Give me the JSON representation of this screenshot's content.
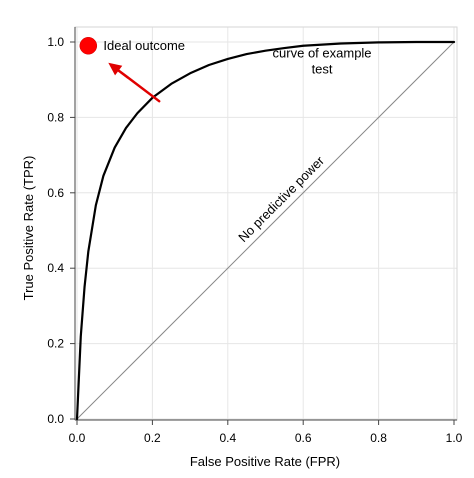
{
  "chart_data": {
    "type": "line",
    "title": "",
    "xlabel": "False Positive Rate (FPR)",
    "ylabel": "True Positive Rate (TPR)",
    "xlim": [
      0,
      1
    ],
    "ylim": [
      0,
      1
    ],
    "x_ticks": [
      0.0,
      0.2,
      0.4,
      0.6,
      0.8,
      1.0
    ],
    "y_ticks": [
      0.0,
      0.2,
      0.4,
      0.6,
      0.8,
      1.0
    ],
    "x_tick_labels": [
      "0.0",
      "0.2",
      "0.4",
      "0.6",
      "0.8",
      "1.0"
    ],
    "y_tick_labels": [
      "0.0",
      "0.2",
      "0.4",
      "0.6",
      "0.8",
      "1.0"
    ],
    "grid": true,
    "series": [
      {
        "style": "solid",
        "color": "#000000",
        "x": [
          0.0,
          0.01,
          0.02,
          0.03,
          0.05,
          0.07,
          0.1,
          0.13,
          0.16,
          0.2,
          0.25,
          0.3,
          0.35,
          0.4,
          0.45,
          0.5,
          0.55,
          0.6,
          0.7,
          0.8,
          0.9,
          1.0
        ],
        "y": [
          0.0,
          0.219,
          0.35,
          0.444,
          0.567,
          0.645,
          0.72,
          0.772,
          0.811,
          0.852,
          0.889,
          0.917,
          0.939,
          0.955,
          0.968,
          0.977,
          0.984,
          0.99,
          0.996,
          0.999,
          1.0,
          1.0
        ]
      },
      {
        "style": "solid",
        "color": "#888888",
        "x": [
          0,
          1
        ],
        "y": [
          0,
          1
        ]
      }
    ],
    "points": [
      {
        "label": "Ideal outcome",
        "x": 0.03,
        "y": 0.99,
        "color": "#ff0000"
      }
    ],
    "annotations": [
      {
        "text": "Ideal outcome",
        "x": 0.07,
        "y": 0.99
      },
      {
        "lines": [
          "curve of example",
          "test"
        ],
        "x": 0.65,
        "y": 0.97
      },
      {
        "text": "No predictive power",
        "x": 0.55,
        "y": 0.575,
        "rotation": -45
      }
    ],
    "arrows": [
      {
        "color": "#e00000",
        "from": [
          0.218,
          0.843
        ],
        "to": [
          0.083,
          0.945
        ]
      }
    ]
  }
}
